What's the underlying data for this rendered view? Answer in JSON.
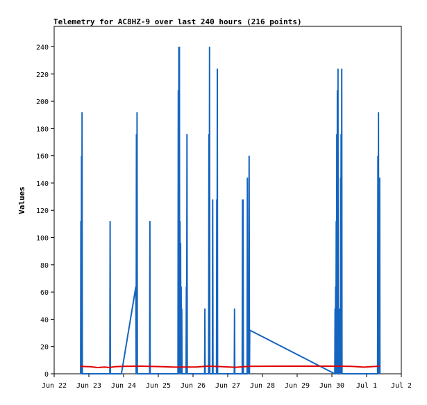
{
  "chart_data": {
    "type": "line",
    "title": "Telemetry for AC8HZ-9 over last 240 hours (216 points)",
    "xlabel": "",
    "ylabel": "Values",
    "ylim": [
      0,
      255
    ],
    "xlim": [
      0,
      240
    ],
    "x_ticks": [
      {
        "value": 0,
        "label": "Jun 22"
      },
      {
        "value": 24,
        "label": "Jun 23"
      },
      {
        "value": 48,
        "label": "Jun 24"
      },
      {
        "value": 72,
        "label": "Jun 25"
      },
      {
        "value": 96,
        "label": "Jun 26"
      },
      {
        "value": 120,
        "label": "Jun 27"
      },
      {
        "value": 144,
        "label": "Jun 28"
      },
      {
        "value": 168,
        "label": "Jun 29"
      },
      {
        "value": 192,
        "label": "Jun 30"
      },
      {
        "value": 216,
        "label": "Jul 1"
      },
      {
        "value": 240,
        "label": "Jul 2"
      }
    ],
    "y_ticks": [
      0,
      20,
      40,
      60,
      80,
      100,
      120,
      140,
      160,
      180,
      200,
      220,
      240
    ],
    "grid": false,
    "legend": "none",
    "series": [
      {
        "color": "#1565c0",
        "points": [
          [
            18.3,
            0
          ],
          [
            18.5,
            112
          ],
          [
            18.7,
            0
          ],
          [
            18.9,
            160
          ],
          [
            19.1,
            0
          ],
          [
            19.3,
            192
          ],
          [
            19.5,
            0
          ],
          [
            38.5,
            0
          ],
          [
            38.7,
            112
          ],
          [
            38.9,
            0
          ],
          [
            46.5,
            0
          ],
          [
            56.5,
            64
          ],
          [
            56.7,
            0
          ],
          [
            56.9,
            176
          ],
          [
            57.1,
            0
          ],
          [
            57.3,
            192
          ],
          [
            57.5,
            0
          ],
          [
            66.0,
            0
          ],
          [
            66.2,
            112
          ],
          [
            66.4,
            0
          ],
          [
            85.6,
            0
          ],
          [
            85.8,
            208
          ],
          [
            86.0,
            0
          ],
          [
            86.2,
            240
          ],
          [
            86.4,
            0
          ],
          [
            86.6,
            240
          ],
          [
            86.8,
            0
          ],
          [
            87.0,
            112
          ],
          [
            87.2,
            0
          ],
          [
            87.4,
            96
          ],
          [
            87.6,
            0
          ],
          [
            87.8,
            64
          ],
          [
            88.0,
            0
          ],
          [
            88.2,
            48
          ],
          [
            88.4,
            0
          ],
          [
            91.2,
            0
          ],
          [
            91.4,
            64
          ],
          [
            91.6,
            0
          ],
          [
            91.8,
            176
          ],
          [
            92.0,
            0
          ],
          [
            104.0,
            0
          ],
          [
            104.2,
            48
          ],
          [
            104.4,
            0
          ],
          [
            106.8,
            0
          ],
          [
            107.0,
            176
          ],
          [
            107.2,
            0
          ],
          [
            107.4,
            240
          ],
          [
            107.6,
            0
          ],
          [
            109.4,
            0
          ],
          [
            109.6,
            128
          ],
          [
            109.8,
            0
          ],
          [
            112.2,
            0
          ],
          [
            112.4,
            128
          ],
          [
            112.6,
            0
          ],
          [
            112.8,
            224
          ],
          [
            113.0,
            0
          ],
          [
            124.5,
            0
          ],
          [
            124.7,
            48
          ],
          [
            124.9,
            0
          ],
          [
            130.0,
            0
          ],
          [
            130.2,
            128
          ],
          [
            130.4,
            0
          ],
          [
            130.6,
            128
          ],
          [
            130.8,
            0
          ],
          [
            133.4,
            0
          ],
          [
            133.6,
            144
          ],
          [
            133.8,
            0
          ],
          [
            134.0,
            64
          ],
          [
            134.2,
            0
          ],
          [
            134.4,
            16
          ],
          [
            134.6,
            0
          ],
          [
            134.8,
            160
          ],
          [
            135.0,
            0
          ],
          [
            135.2,
            32
          ],
          [
            194.0,
            0
          ],
          [
            194.2,
            48
          ],
          [
            194.4,
            0
          ],
          [
            194.6,
            64
          ],
          [
            194.8,
            0
          ],
          [
            195.0,
            112
          ],
          [
            195.2,
            0
          ],
          [
            195.4,
            176
          ],
          [
            195.6,
            0
          ],
          [
            195.8,
            208
          ],
          [
            196.0,
            0
          ],
          [
            196.2,
            224
          ],
          [
            196.4,
            0
          ],
          [
            197.0,
            0
          ],
          [
            197.2,
            48
          ],
          [
            197.4,
            0
          ],
          [
            197.6,
            48
          ],
          [
            197.8,
            0
          ],
          [
            198.0,
            144
          ],
          [
            198.2,
            0
          ],
          [
            198.4,
            176
          ],
          [
            198.6,
            0
          ],
          [
            198.8,
            224
          ],
          [
            199.0,
            0
          ],
          [
            223.6,
            0
          ],
          [
            223.8,
            160
          ],
          [
            224.0,
            0
          ],
          [
            224.2,
            192
          ],
          [
            224.4,
            0
          ],
          [
            224.6,
            128
          ],
          [
            224.8,
            0
          ],
          [
            225.0,
            144
          ],
          [
            225.2,
            0
          ]
        ]
      },
      {
        "color": "#e00000",
        "points": [
          [
            18.0,
            5.5
          ],
          [
            25.0,
            5.2
          ],
          [
            30.0,
            4.6
          ],
          [
            35.0,
            5.0
          ],
          [
            38.0,
            4.6
          ],
          [
            42.0,
            5.2
          ],
          [
            48.0,
            5.5
          ],
          [
            60.0,
            5.6
          ],
          [
            75.0,
            5.2
          ],
          [
            84.0,
            4.9
          ],
          [
            90.0,
            5.0
          ],
          [
            98.0,
            5.0
          ],
          [
            106.0,
            5.6
          ],
          [
            115.0,
            5.3
          ],
          [
            125.0,
            4.8
          ],
          [
            135.0,
            5.5
          ],
          [
            160.0,
            5.6
          ],
          [
            190.0,
            5.6
          ],
          [
            205.0,
            5.5
          ],
          [
            214.0,
            4.9
          ],
          [
            225.0,
            5.6
          ]
        ]
      }
    ]
  }
}
